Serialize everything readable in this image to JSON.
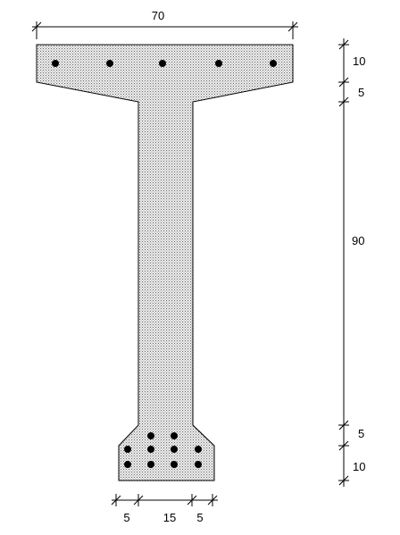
{
  "dimensions": {
    "top_width": "70",
    "flange_thickness": "10",
    "flange_taper": "5",
    "web_height": "90",
    "bulb_taper": "5",
    "bulb_thickness": "10",
    "bottom_left": "5",
    "bottom_web": "15",
    "bottom_right": "5"
  },
  "colors": {
    "fill": "#d6d6d6",
    "line": "#000000"
  },
  "reinforcement": {
    "top_bars": 5,
    "bottom_bars": 10
  }
}
